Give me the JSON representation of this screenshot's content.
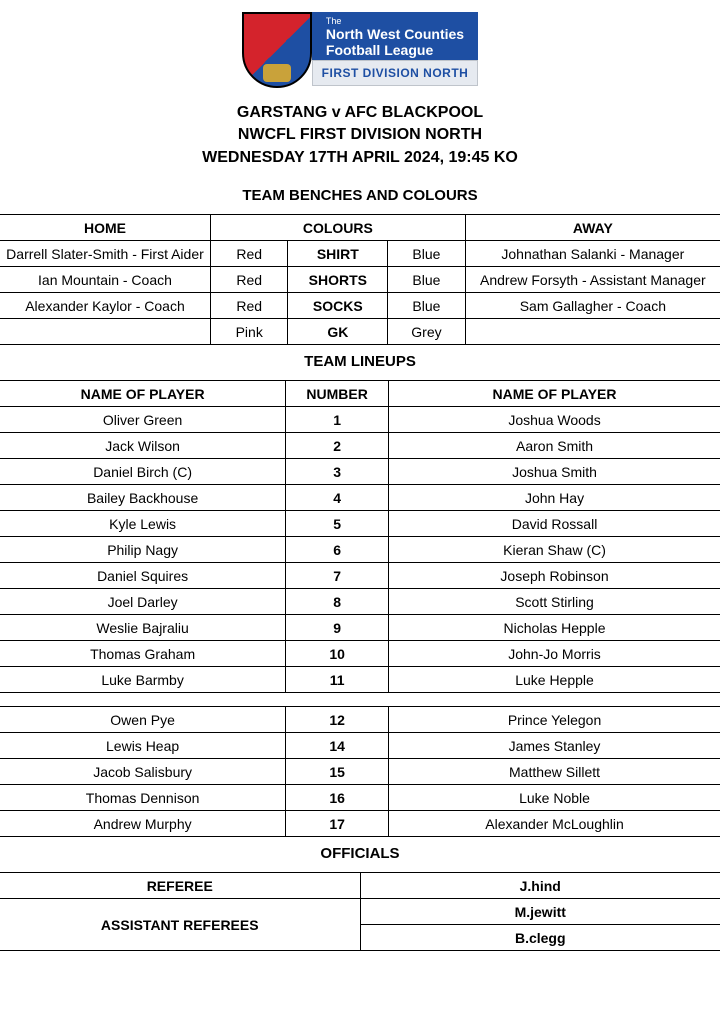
{
  "logo": {
    "the": "The",
    "line1": "North West Counties",
    "line2": "Football League",
    "division": "FIRST DIVISION NORTH"
  },
  "header": {
    "match": "GARSTANG v AFC BLACKPOOL",
    "league": "NWCFL FIRST DIVISION NORTH",
    "datetime": "WEDNESDAY 17TH APRIL 2024, 19:45 KO"
  },
  "sections": {
    "benches": "TEAM BENCHES AND COLOURS",
    "lineups": "TEAM LINEUPS",
    "officials": "OFFICIALS"
  },
  "benches": {
    "headers": {
      "home": "HOME",
      "colours": "COLOURS",
      "away": "AWAY"
    },
    "rows": [
      {
        "home": "Darrell Slater-Smith - First Aider",
        "hc": "Red",
        "item": "SHIRT",
        "ac": "Blue",
        "away": "Johnathan Salanki - Manager"
      },
      {
        "home": "Ian Mountain - Coach",
        "hc": "Red",
        "item": "SHORTS",
        "ac": "Blue",
        "away": "Andrew Forsyth - Assistant Manager"
      },
      {
        "home": "Alexander Kaylor - Coach",
        "hc": "Red",
        "item": "SOCKS",
        "ac": "Blue",
        "away": "Sam Gallagher - Coach"
      },
      {
        "home": "",
        "hc": "Pink",
        "item": "GK",
        "ac": "Grey",
        "away": ""
      }
    ]
  },
  "lineups": {
    "headers": {
      "home": "NAME OF PLAYER",
      "number": "NUMBER",
      "away": "NAME OF PLAYER"
    },
    "starters": [
      {
        "h": "Oliver Green",
        "n": "1",
        "a": "Joshua Woods"
      },
      {
        "h": "Jack Wilson",
        "n": "2",
        "a": "Aaron Smith"
      },
      {
        "h": "Daniel Birch (C)",
        "n": "3",
        "a": "Joshua Smith"
      },
      {
        "h": "Bailey Backhouse",
        "n": "4",
        "a": "John Hay"
      },
      {
        "h": "Kyle Lewis",
        "n": "5",
        "a": "David Rossall"
      },
      {
        "h": "Philip Nagy",
        "n": "6",
        "a": "Kieran Shaw (C)"
      },
      {
        "h": "Daniel Squires",
        "n": "7",
        "a": "Joseph Robinson"
      },
      {
        "h": "Joel Darley",
        "n": "8",
        "a": "Scott Stirling"
      },
      {
        "h": "Weslie Bajraliu",
        "n": "9",
        "a": "Nicholas Hepple"
      },
      {
        "h": "Thomas Graham",
        "n": "10",
        "a": "John-Jo Morris"
      },
      {
        "h": "Luke Barmby",
        "n": "11",
        "a": "Luke Hepple"
      }
    ],
    "subs": [
      {
        "h": "Owen Pye",
        "n": "12",
        "a": "Prince Yelegon"
      },
      {
        "h": "Lewis Heap",
        "n": "14",
        "a": "James Stanley"
      },
      {
        "h": "Jacob Salisbury",
        "n": "15",
        "a": "Matthew Sillett"
      },
      {
        "h": "Thomas Dennison",
        "n": "16",
        "a": "Luke Noble"
      },
      {
        "h": "Andrew Murphy",
        "n": "17",
        "a": "Alexander McLoughlin"
      }
    ]
  },
  "officials": {
    "referee_label": "REFEREE",
    "referee": "J.hind",
    "assistants_label": "ASSISTANT REFEREES",
    "assistant1": "M.jewitt",
    "assistant2": "B.clegg"
  }
}
